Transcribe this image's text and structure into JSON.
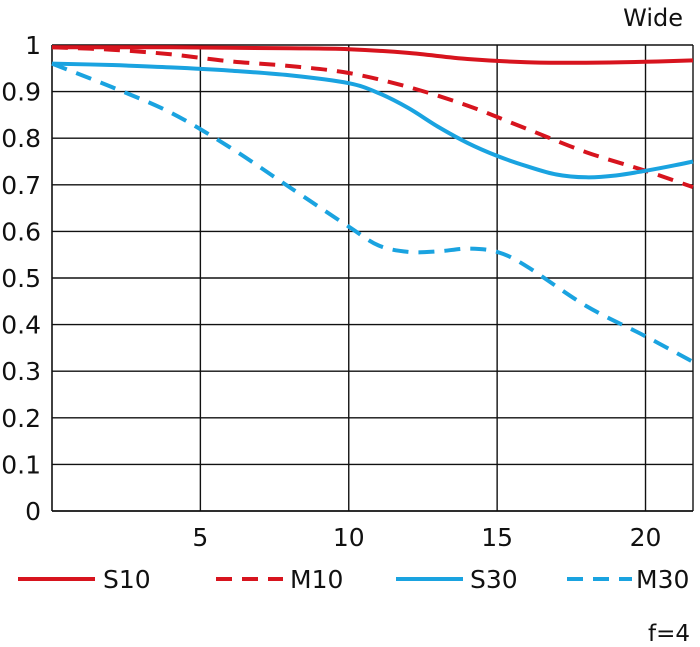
{
  "chart_data": {
    "type": "line",
    "title": "Wide",
    "footer": "f=4",
    "xlabel": "",
    "ylabel": "",
    "xlim": [
      0,
      21.6
    ],
    "ylim": [
      0,
      1
    ],
    "xticks": [
      5,
      10,
      15,
      20
    ],
    "yticks": [
      0,
      0.1,
      0.2,
      0.3,
      0.4,
      0.5,
      0.6,
      0.7,
      0.8,
      0.9,
      1
    ],
    "ytick_labels": [
      "0",
      "0.1",
      "0.2",
      "0.3",
      "0.4",
      "0.5",
      "0.6",
      "0.7",
      "0.8",
      "0.9",
      "1"
    ],
    "xtick_labels": [
      "5",
      "10",
      "15",
      "20"
    ],
    "grid": true,
    "legend_position": "bottom",
    "series": [
      {
        "name": "S10",
        "color": "#d7141e",
        "dash": "solid",
        "x": [
          0,
          2,
          4,
          6,
          8,
          10,
          12,
          14,
          16,
          18,
          20,
          21.6
        ],
        "y": [
          0.995,
          0.995,
          0.995,
          0.994,
          0.993,
          0.991,
          0.983,
          0.97,
          0.963,
          0.962,
          0.964,
          0.967
        ]
      },
      {
        "name": "M10",
        "color": "#d7141e",
        "dash": "dashed",
        "x": [
          0,
          2,
          4,
          6,
          8,
          10,
          12,
          14,
          16,
          18,
          20,
          21.6
        ],
        "y": [
          0.995,
          0.99,
          0.98,
          0.965,
          0.955,
          0.94,
          0.91,
          0.87,
          0.82,
          0.77,
          0.73,
          0.695
        ]
      },
      {
        "name": "S30",
        "color": "#1aa3e0",
        "dash": "solid",
        "x": [
          0,
          2,
          4,
          6,
          8,
          10,
          11,
          12,
          13,
          14,
          15,
          16,
          17,
          18,
          19,
          20,
          21,
          21.6
        ],
        "y": [
          0.96,
          0.957,
          0.952,
          0.945,
          0.935,
          0.918,
          0.897,
          0.865,
          0.825,
          0.79,
          0.762,
          0.74,
          0.722,
          0.716,
          0.72,
          0.73,
          0.742,
          0.75
        ]
      },
      {
        "name": "M30",
        "color": "#1aa3e0",
        "dash": "dashed",
        "x": [
          0,
          2,
          4,
          6,
          8,
          10,
          11,
          12,
          13,
          14,
          15,
          16,
          18,
          20,
          21.6
        ],
        "y": [
          0.96,
          0.91,
          0.855,
          0.78,
          0.695,
          0.61,
          0.57,
          0.556,
          0.557,
          0.563,
          0.556,
          0.525,
          0.44,
          0.375,
          0.32
        ]
      }
    ]
  }
}
